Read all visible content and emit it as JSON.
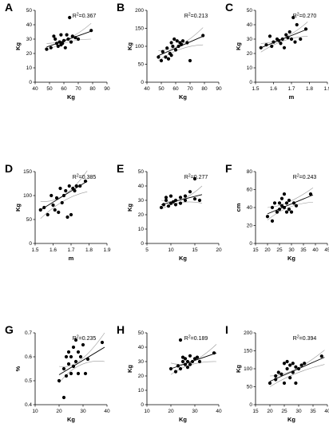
{
  "chart_data": [
    {
      "panel": "A",
      "type": "scatter",
      "xlabel": "Kg",
      "ylabel": "Kg",
      "annotation_prefix": "R",
      "annotation_sup": "2",
      "annotation_value": "=0.367",
      "xlim": [
        40,
        90
      ],
      "ylim": [
        0,
        50
      ],
      "xticks": [
        "40",
        "50",
        "60",
        "70",
        "80",
        "90"
      ],
      "yticks": [
        "0",
        "10",
        "20",
        "30",
        "40",
        "50"
      ],
      "x": [
        48,
        51,
        53,
        54,
        55,
        56,
        57,
        58,
        58,
        59,
        60,
        61,
        62,
        63,
        64,
        65,
        66,
        68,
        70,
        79
      ],
      "y": [
        23,
        24,
        32,
        30,
        27,
        25,
        28,
        26,
        33,
        27,
        29,
        24,
        33,
        30,
        45,
        28,
        32,
        31,
        30,
        36
      ],
      "fit": [
        [
          48,
          24.5
        ],
        [
          79,
          35.5
        ]
      ],
      "ci_upper": [
        [
          48,
          27
        ],
        [
          63,
          30.5
        ],
        [
          79,
          41
        ]
      ],
      "ci_lower": [
        [
          48,
          22
        ],
        [
          63,
          28
        ],
        [
          79,
          30
        ]
      ]
    },
    {
      "panel": "B",
      "type": "scatter",
      "xlabel": "Kg",
      "ylabel": "Kg",
      "annotation_prefix": "R",
      "annotation_sup": "2",
      "annotation_value": "=0.213",
      "xlim": [
        40,
        90
      ],
      "ylim": [
        0,
        200
      ],
      "xticks": [
        "40",
        "50",
        "60",
        "70",
        "80",
        "90"
      ],
      "yticks": [
        "0",
        "50",
        "100",
        "150",
        "200"
      ],
      "x": [
        48,
        50,
        51,
        53,
        54,
        55,
        56,
        57,
        57,
        58,
        59,
        60,
        61,
        62,
        63,
        64,
        65,
        68,
        70,
        79
      ],
      "y": [
        70,
        60,
        85,
        70,
        95,
        65,
        80,
        75,
        110,
        100,
        120,
        90,
        115,
        100,
        110,
        105,
        115,
        110,
        60,
        130
      ],
      "fit": [
        [
          48,
          74
        ],
        [
          79,
          128
        ]
      ],
      "ci_upper": [
        [
          48,
          88
        ],
        [
          63,
          104
        ],
        [
          79,
          152
        ]
      ],
      "ci_lower": [
        [
          48,
          60
        ],
        [
          63,
          92
        ],
        [
          79,
          104
        ]
      ]
    },
    {
      "panel": "C",
      "type": "scatter",
      "xlabel": "m",
      "ylabel": "Kg",
      "annotation_prefix": "R",
      "annotation_sup": "2",
      "annotation_value": "=0.270",
      "xlim": [
        1.5,
        1.9
      ],
      "ylim": [
        0,
        50
      ],
      "xticks": [
        "1.5",
        "1.6",
        "1.7",
        "1.8",
        "1.9"
      ],
      "yticks": [
        "0",
        "10",
        "20",
        "30",
        "40",
        "50"
      ],
      "x": [
        1.53,
        1.56,
        1.58,
        1.59,
        1.6,
        1.62,
        1.63,
        1.64,
        1.65,
        1.66,
        1.67,
        1.68,
        1.69,
        1.7,
        1.71,
        1.72,
        1.73,
        1.75,
        1.78
      ],
      "y": [
        24,
        26,
        32,
        25,
        28,
        30,
        29,
        27,
        30,
        24,
        33,
        31,
        35,
        30,
        45,
        28,
        40,
        30,
        37
      ],
      "fit": [
        [
          1.53,
          24
        ],
        [
          1.79,
          37
        ]
      ],
      "ci_upper": [
        [
          1.53,
          27
        ],
        [
          1.66,
          31
        ],
        [
          1.79,
          42
        ]
      ],
      "ci_lower": [
        [
          1.53,
          21
        ],
        [
          1.66,
          29
        ],
        [
          1.79,
          32
        ]
      ]
    },
    {
      "panel": "D",
      "type": "scatter",
      "xlabel": "m",
      "ylabel": "Kg",
      "annotation_prefix": "R",
      "annotation_sup": "2",
      "annotation_value": "=0.385",
      "xlim": [
        1.5,
        1.9
      ],
      "ylim": [
        0,
        150
      ],
      "xticks": [
        "1.5",
        "1.6",
        "1.7",
        "1.8",
        "1.9"
      ],
      "yticks": [
        "0",
        "50",
        "100",
        "150"
      ],
      "x": [
        1.53,
        1.55,
        1.57,
        1.59,
        1.6,
        1.61,
        1.62,
        1.63,
        1.64,
        1.65,
        1.66,
        1.67,
        1.68,
        1.69,
        1.7,
        1.71,
        1.72,
        1.73,
        1.75,
        1.78
      ],
      "y": [
        70,
        75,
        60,
        100,
        80,
        70,
        95,
        65,
        115,
        85,
        100,
        110,
        55,
        120,
        60,
        115,
        110,
        120,
        120,
        130
      ],
      "fit": [
        [
          1.53,
          70
        ],
        [
          1.79,
          130
        ]
      ],
      "ci_upper": [
        [
          1.53,
          88
        ],
        [
          1.66,
          101
        ],
        [
          1.79,
          152
        ]
      ],
      "ci_lower": [
        [
          1.53,
          52
        ],
        [
          1.66,
          89
        ],
        [
          1.79,
          108
        ]
      ]
    },
    {
      "panel": "E",
      "type": "scatter",
      "xlabel": "Kg",
      "ylabel": "Kg",
      "annotation_prefix": "R",
      "annotation_sup": "2",
      "annotation_value": "=0.277",
      "xlim": [
        5,
        20
      ],
      "ylim": [
        0,
        50
      ],
      "xticks": [
        "5",
        "10",
        "15",
        "20"
      ],
      "yticks": [
        "0",
        "10",
        "20",
        "30",
        "40",
        "50"
      ],
      "x": [
        8,
        8.5,
        9,
        9,
        9.5,
        10,
        10,
        10.5,
        11,
        11,
        12,
        12,
        13,
        13,
        14,
        15,
        15,
        16
      ],
      "y": [
        25,
        27,
        30,
        32,
        26,
        28,
        33,
        29,
        30,
        27,
        32,
        28,
        30,
        33,
        36,
        45,
        31,
        30
      ],
      "fit": [
        [
          8,
          27
        ],
        [
          16.5,
          34
        ]
      ],
      "ci_upper": [
        [
          8,
          30
        ],
        [
          12,
          30.5
        ],
        [
          16.5,
          40
        ]
      ],
      "ci_lower": [
        [
          8,
          24
        ],
        [
          12,
          28.5
        ],
        [
          16.5,
          28
        ]
      ]
    },
    {
      "panel": "F",
      "type": "scatter",
      "xlabel": "Kg",
      "ylabel": "cm",
      "annotation_prefix": "R",
      "annotation_sup": "2",
      "annotation_value": "=0.243",
      "xlim": [
        15,
        45
      ],
      "ylim": [
        0,
        80
      ],
      "xticks": [
        "15",
        "20",
        "25",
        "30",
        "35",
        "40",
        "45"
      ],
      "yticks": [
        "0",
        "20",
        "40",
        "60",
        "80"
      ],
      "x": [
        20,
        22,
        22,
        23,
        24,
        25,
        25,
        26,
        26,
        27,
        27,
        28,
        28,
        29,
        29,
        30,
        31,
        32,
        38
      ],
      "y": [
        30,
        40,
        25,
        45,
        35,
        38,
        45,
        42,
        50,
        40,
        55,
        35,
        45,
        48,
        38,
        35,
        45,
        42,
        55
      ],
      "fit": [
        [
          20,
          33
        ],
        [
          39,
          54
        ]
      ],
      "ci_upper": [
        [
          20,
          40
        ],
        [
          28,
          46
        ],
        [
          39,
          62
        ]
      ],
      "ci_lower": [
        [
          20,
          26
        ],
        [
          28,
          40
        ],
        [
          39,
          46
        ]
      ]
    },
    {
      "panel": "G",
      "type": "scatter",
      "xlabel": "Kg",
      "ylabel": "%",
      "annotation_prefix": "R",
      "annotation_sup": "2",
      "annotation_value": "=0.235",
      "xlim": [
        10,
        40
      ],
      "ylim": [
        0.4,
        0.7
      ],
      "xticks": [
        "10",
        "20",
        "30",
        "40"
      ],
      "yticks": [
        "0.4",
        "0.5",
        "0.6",
        "0.7"
      ],
      "x": [
        20,
        22,
        22,
        23,
        23,
        24,
        24,
        25,
        25,
        26,
        26,
        27,
        27,
        28,
        28,
        29,
        30,
        31,
        32,
        38
      ],
      "y": [
        0.5,
        0.43,
        0.55,
        0.52,
        0.6,
        0.57,
        0.62,
        0.53,
        0.6,
        0.56,
        0.64,
        0.58,
        0.67,
        0.53,
        0.62,
        0.6,
        0.65,
        0.53,
        0.59,
        0.66
      ],
      "fit": [
        [
          20,
          0.525
        ],
        [
          39,
          0.64
        ]
      ],
      "ci_upper": [
        [
          20,
          0.56
        ],
        [
          28,
          0.585
        ],
        [
          39,
          0.7
        ]
      ],
      "ci_lower": [
        [
          20,
          0.49
        ],
        [
          28,
          0.565
        ],
        [
          39,
          0.58
        ]
      ]
    },
    {
      "panel": "H",
      "type": "scatter",
      "xlabel": "Kg",
      "ylabel": "Kg",
      "annotation_prefix": "R",
      "annotation_sup": "2",
      "annotation_value": "=0.189",
      "xlim": [
        10,
        40
      ],
      "ylim": [
        0,
        50
      ],
      "xticks": [
        "10",
        "20",
        "30",
        "40"
      ],
      "yticks": [
        "0",
        "10",
        "20",
        "30",
        "40",
        "50"
      ],
      "x": [
        20,
        22,
        23,
        24,
        24,
        25,
        25,
        26,
        26,
        27,
        27,
        28,
        28,
        29,
        30,
        31,
        32,
        38
      ],
      "y": [
        25,
        23,
        27,
        45,
        25,
        30,
        33,
        28,
        32,
        26,
        30,
        28,
        34,
        30,
        32,
        33,
        30,
        36
      ],
      "fit": [
        [
          20,
          25
        ],
        [
          39,
          36
        ]
      ],
      "ci_upper": [
        [
          20,
          29
        ],
        [
          28,
          30
        ],
        [
          39,
          42
        ]
      ],
      "ci_lower": [
        [
          20,
          21
        ],
        [
          28,
          28
        ],
        [
          39,
          30
        ]
      ]
    },
    {
      "panel": "I",
      "type": "scatter",
      "xlabel": "Kg",
      "ylabel": "Kg",
      "annotation_prefix": "R",
      "annotation_sup": "2",
      "annotation_value": "=0.394",
      "xlim": [
        15,
        40
      ],
      "ylim": [
        0,
        200
      ],
      "xticks": [
        "15",
        "20",
        "25",
        "30",
        "35",
        "40"
      ],
      "yticks": [
        "0",
        "50",
        "100",
        "150",
        "200"
      ],
      "x": [
        20,
        22,
        22,
        23,
        24,
        25,
        25,
        26,
        26,
        27,
        27,
        28,
        28,
        29,
        29,
        30,
        31,
        32,
        38
      ],
      "y": [
        60,
        70,
        80,
        90,
        85,
        115,
        60,
        100,
        120,
        75,
        110,
        90,
        115,
        105,
        60,
        100,
        110,
        115,
        135
      ],
      "fit": [
        [
          20,
          65
        ],
        [
          39,
          132
        ]
      ],
      "ci_upper": [
        [
          20,
          80
        ],
        [
          28,
          98
        ],
        [
          39,
          152
        ]
      ],
      "ci_lower": [
        [
          20,
          50
        ],
        [
          28,
          86
        ],
        [
          39,
          112
        ]
      ]
    }
  ]
}
